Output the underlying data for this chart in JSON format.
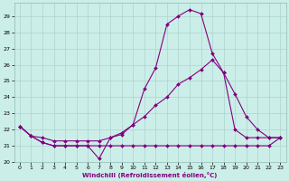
{
  "xlabel": "Windchill (Refroidissement éolien,°C)",
  "background_color": "#cceee8",
  "grid_color": "#aad4ce",
  "line_color": "#800080",
  "xlim": [
    -0.5,
    23.5
  ],
  "ylim": [
    20,
    29.8
  ],
  "yticks": [
    20,
    21,
    22,
    23,
    24,
    25,
    26,
    27,
    28,
    29
  ],
  "xticks": [
    0,
    1,
    2,
    3,
    4,
    5,
    6,
    7,
    8,
    9,
    10,
    11,
    12,
    13,
    14,
    15,
    16,
    17,
    18,
    19,
    20,
    21,
    22,
    23
  ],
  "s1_x": [
    0,
    1,
    2,
    3,
    4,
    5,
    6,
    7,
    8,
    9,
    10,
    11,
    12,
    13,
    14,
    15,
    16,
    17,
    18,
    19,
    20,
    21,
    22,
    23
  ],
  "s1_y": [
    22.2,
    21.6,
    21.2,
    21.0,
    21.0,
    21.0,
    21.0,
    20.2,
    21.5,
    21.7,
    22.3,
    24.5,
    25.8,
    28.5,
    29.0,
    29.4,
    29.15,
    26.7,
    25.5,
    22.0,
    21.5,
    21.5,
    21.5,
    21.5
  ],
  "s2_x": [
    0,
    1,
    2,
    3,
    4,
    5,
    6,
    7,
    8,
    9,
    10,
    11,
    12,
    13,
    14,
    15,
    16,
    17,
    18,
    19,
    20,
    21,
    22,
    23
  ],
  "s2_y": [
    22.2,
    21.6,
    21.5,
    21.3,
    21.3,
    21.3,
    21.3,
    21.3,
    21.5,
    21.8,
    22.3,
    22.8,
    23.5,
    24.0,
    24.8,
    25.2,
    25.7,
    26.3,
    25.5,
    24.2,
    22.8,
    22.0,
    21.5,
    21.5
  ],
  "s3_x": [
    0,
    1,
    2,
    3,
    4,
    5,
    6,
    7,
    8,
    9,
    10,
    11,
    12,
    13,
    14,
    15,
    16,
    17,
    18,
    19,
    20,
    21,
    22,
    23
  ],
  "s3_y": [
    22.2,
    21.6,
    21.2,
    21.0,
    21.0,
    21.0,
    21.0,
    21.0,
    21.0,
    21.0,
    21.0,
    21.0,
    21.0,
    21.0,
    21.0,
    21.0,
    21.0,
    21.0,
    21.0,
    21.0,
    21.0,
    21.0,
    21.0,
    21.5
  ]
}
